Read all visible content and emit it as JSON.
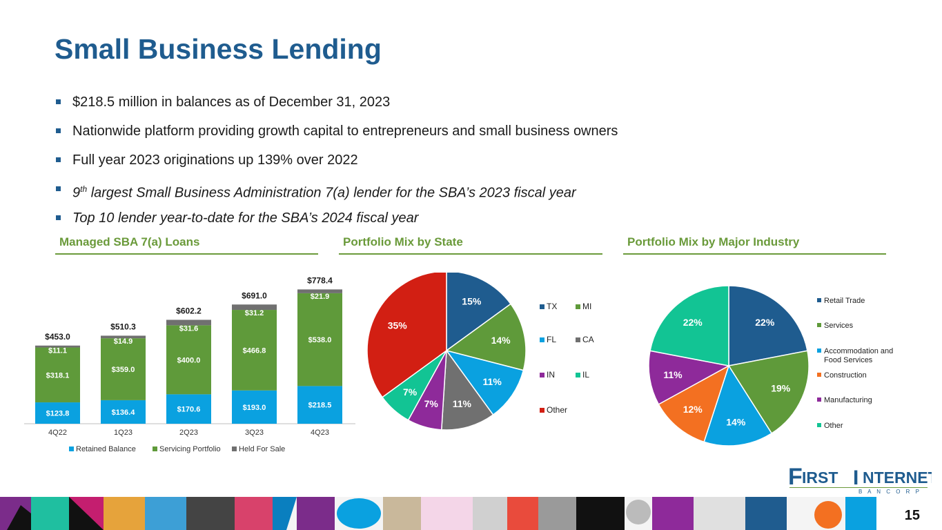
{
  "slide": {
    "title": "Small Business Lending",
    "bullets": [
      {
        "text": "$218.5 million in balances as of December 31, 2023"
      },
      {
        "text": "Nationwide platform providing growth capital to entrepreneurs and small business owners"
      },
      {
        "text": "Full year 2023 originations up 139% over 2022"
      },
      {
        "pre": "9",
        "sup": "th",
        "post": " largest Small Business Administration 7(a) lender for the SBA’s 2023 fiscal year"
      },
      {
        "text": "Top 10 lender year-to-date for the SBA’s 2024 fiscal year"
      }
    ],
    "sections": [
      "Managed SBA 7(a) Loans",
      "Portfolio Mix by State",
      "Portfolio Mix by Major Industry"
    ],
    "logo": {
      "big": "F",
      "rest1": "IRST ",
      "big2": "I",
      "rest2": "NTERNET",
      "sub": "B A N C O R P"
    },
    "page_number": "15"
  },
  "colors": {
    "title": "#1f5c8f",
    "accent_green": "#6a9a3a",
    "retained": "#0aa1e0",
    "servicing": "#5f9a3a",
    "held": "#707070",
    "pie": [
      "#1f5c8f",
      "#5f9a3a",
      "#0aa1e0",
      "#707070",
      "#8e2a9a",
      "#12c494",
      "#d21f13"
    ],
    "industry": [
      "#1f5c8f",
      "#5f9a3a",
      "#0aa1e0",
      "#f37021",
      "#8e2a9a",
      "#12c494"
    ]
  },
  "chart_data": [
    {
      "type": "bar",
      "stacked": true,
      "title": "Managed SBA 7(a) Loans",
      "categories": [
        "4Q22",
        "1Q23",
        "2Q23",
        "3Q23",
        "4Q23"
      ],
      "series": [
        {
          "name": "Retained Balance",
          "values": [
            123.8,
            136.4,
            170.6,
            193.0,
            218.5
          ],
          "labels": [
            "$123.8",
            "$136.4",
            "$170.6",
            "$193.0",
            "$218.5"
          ]
        },
        {
          "name": "Servicing Portfolio",
          "values": [
            318.1,
            359.0,
            400.0,
            466.8,
            538.0
          ],
          "labels": [
            "$318.1",
            "$359.0",
            "$400.0",
            "$466.8",
            "$538.0"
          ]
        },
        {
          "name": "Held For Sale",
          "values": [
            11.1,
            14.9,
            31.6,
            31.2,
            21.9
          ],
          "labels": [
            "$11.1",
            "$14.9",
            "$31.6",
            "$31.2",
            "$21.9"
          ]
        }
      ],
      "totals": [
        "$453.0",
        "$510.3",
        "$602.2",
        "$691.0",
        "$778.4"
      ],
      "total_values": [
        453.0,
        510.3,
        602.2,
        691.0,
        778.4
      ],
      "legend": "bottom"
    },
    {
      "type": "pie",
      "title": "Portfolio Mix by State",
      "categories": [
        "TX",
        "MI",
        "FL",
        "CA",
        "IN",
        "IL",
        "Other"
      ],
      "values": [
        15,
        14,
        11,
        11,
        7,
        7,
        35
      ],
      "labels": [
        "15%",
        "14%",
        "11%",
        "11%",
        "7%",
        "7%",
        "35%"
      ],
      "legend": "right"
    },
    {
      "type": "pie",
      "title": "Portfolio Mix by Major Industry",
      "categories": [
        "Retail Trade",
        "Services",
        "Accommodation and Food Services",
        "Construction",
        "Manufacturing",
        "Other"
      ],
      "legend_lines": [
        [
          "Retail Trade"
        ],
        [
          "Services"
        ],
        [
          "Accommodation and",
          "Food Services"
        ],
        [
          "Construction"
        ],
        [
          "Manufacturing"
        ],
        [
          "Other"
        ]
      ],
      "values": [
        22,
        19,
        14,
        12,
        11,
        22
      ],
      "labels": [
        "22%",
        "19%",
        "14%",
        "12%",
        "11%",
        "22%"
      ],
      "legend": "right"
    }
  ]
}
